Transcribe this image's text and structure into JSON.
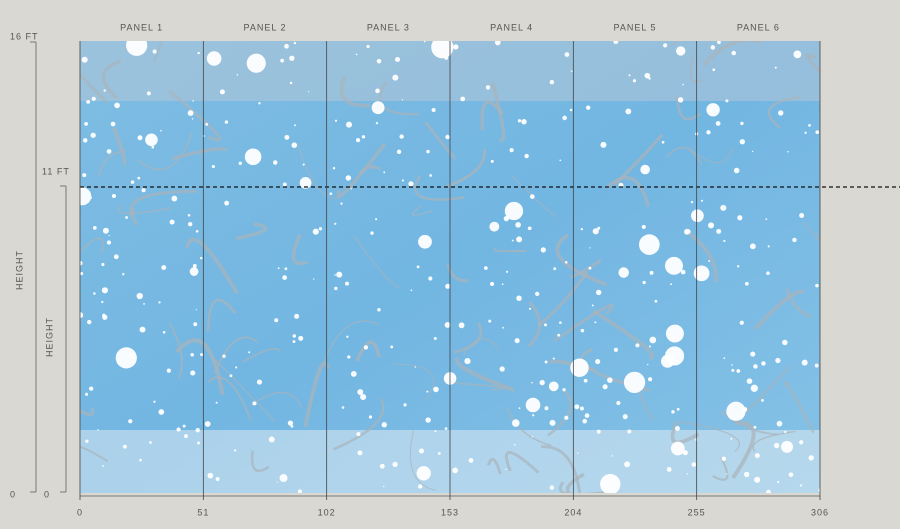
{
  "panels": [
    "PANEL 1",
    "PANEL 2",
    "PANEL 3",
    "PANEL 4",
    "PANEL 5",
    "PANEL 6"
  ],
  "width_scale": [
    0,
    51,
    102,
    153,
    204,
    255,
    306
  ],
  "outer_height": {
    "top": "16 FT",
    "bottom": "0",
    "label": "HEIGHT"
  },
  "inner_height": {
    "top": "11 FT",
    "bottom": "0",
    "label": "HEIGHT"
  }
}
